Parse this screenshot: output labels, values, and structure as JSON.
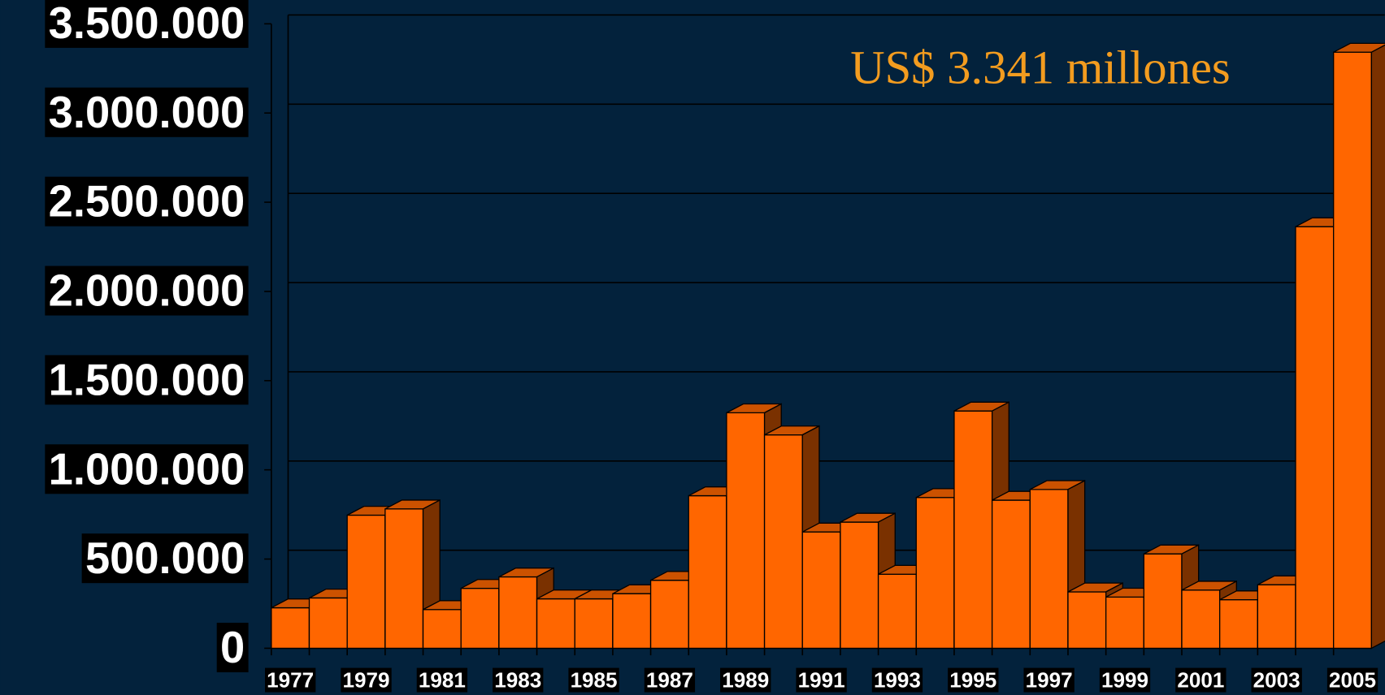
{
  "chart_data": {
    "type": "bar3d",
    "annotation": "US$ 3.341 millones",
    "categories": [
      "1977",
      null,
      "1979",
      null,
      "1981",
      null,
      "1983",
      null,
      "1985",
      null,
      "1987",
      null,
      "1989",
      null,
      "1991",
      null,
      "1993",
      null,
      "1995",
      null,
      "1997",
      null,
      "1999",
      null,
      "2001",
      null,
      "2003",
      null,
      "2005"
    ],
    "values": [
      227000,
      282000,
      746000,
      781000,
      217000,
      336000,
      400000,
      277000,
      277000,
      306000,
      381000,
      855000,
      1320000,
      1196000,
      652000,
      707000,
      415000,
      845000,
      1330000,
      830000,
      890000,
      316000,
      287000,
      529000,
      326000,
      272000,
      356000,
      2363000,
      3341000
    ],
    "color": "#ff6600",
    "ylim": [
      0,
      3500000
    ],
    "yticks": [
      0,
      {
        "value": 500000,
        "label": "500.000"
      },
      {
        "value": 1000000,
        "label": "1.000.000"
      },
      {
        "value": 1500000,
        "label": "1.500.000"
      },
      {
        "value": 2000000,
        "label": "2.000.000"
      },
      {
        "value": 2500000,
        "label": "2.500.000"
      },
      {
        "value": 3000000,
        "label": "3.000.000"
      },
      {
        "value": 3500000,
        "label": "3.500.000"
      }
    ],
    "grid": true
  }
}
